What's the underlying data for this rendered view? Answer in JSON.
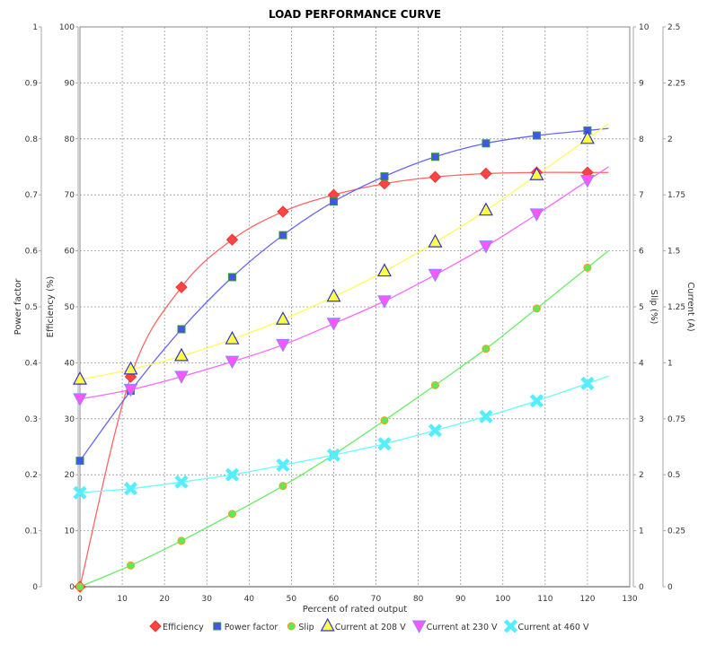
{
  "chart_data": {
    "type": "scatter",
    "title": "LOAD PERFORMANCE CURVE",
    "xlabel": "Percent of rated output",
    "xlim": [
      0,
      130
    ],
    "xticks": [
      0,
      10,
      20,
      30,
      40,
      50,
      60,
      70,
      80,
      90,
      100,
      110,
      120,
      130
    ],
    "grid": true,
    "legend_position": "bottom",
    "fit_to_x": 125,
    "axes": {
      "power_factor": {
        "label": "Power factor",
        "side": "left-outer",
        "ylim": [
          0,
          1
        ],
        "ticks": [
          "0",
          "0.1",
          "0.2",
          "0.3",
          "0.4",
          "0.5",
          "0.6",
          "0.7",
          "0.8",
          "0.9",
          "1"
        ]
      },
      "efficiency": {
        "label": "Efficiency (%)",
        "side": "left",
        "ylim": [
          0,
          100
        ],
        "ticks": [
          "0",
          "10",
          "20",
          "30",
          "40",
          "50",
          "60",
          "70",
          "80",
          "90",
          "100"
        ]
      },
      "slip": {
        "label": "Slip (%)",
        "side": "right",
        "ylim": [
          0,
          10
        ],
        "ticks": [
          "0",
          "1",
          "2",
          "3",
          "4",
          "5",
          "6",
          "7",
          "8",
          "9",
          "10"
        ]
      },
      "current": {
        "label": "Current (A)",
        "side": "right-outer",
        "ylim": [
          0,
          2.5
        ],
        "ticks": [
          "0",
          "0.25",
          "0.5",
          "0.75",
          "1",
          "1.25",
          "1.5",
          "1.75",
          "2",
          "2.25",
          "2.5"
        ]
      }
    },
    "x": [
      0,
      12,
      24,
      36,
      48,
      60,
      72,
      84,
      96,
      108,
      120
    ],
    "series": [
      {
        "name": "Efficiency",
        "axis": "efficiency",
        "color": "#ff4444",
        "line_color": "#ff6666",
        "marker": "diamond",
        "values": [
          0,
          37.5,
          53.5,
          62,
          67,
          70,
          72,
          73.2,
          73.8,
          74,
          74
        ]
      },
      {
        "name": "Power factor",
        "axis": "power_factor",
        "color": "#4455ee",
        "line_color": "#6666ff",
        "marker": "square",
        "values": [
          0.225,
          0.35,
          0.46,
          0.553,
          0.628,
          0.688,
          0.733,
          0.768,
          0.792,
          0.806,
          0.815
        ]
      },
      {
        "name": "Slip",
        "axis": "slip",
        "color": "#55ee55",
        "line_color": "#66ee66",
        "marker": "circle",
        "values": [
          0,
          0.38,
          0.82,
          1.3,
          1.8,
          2.36,
          2.97,
          3.6,
          4.25,
          4.97,
          5.7
        ]
      },
      {
        "name": "Current at 208 V",
        "axis": "current",
        "color": "#ffff44",
        "line_color": "#ffff55",
        "marker": "triangle-up",
        "values": [
          0.925,
          0.97,
          1.03,
          1.105,
          1.193,
          1.295,
          1.408,
          1.538,
          1.68,
          1.838,
          2.0
        ]
      },
      {
        "name": "Current at 230 V",
        "axis": "current",
        "color": "#ff55ff",
        "line_color": "#ff66ff",
        "marker": "triangle-down",
        "values": [
          0.838,
          0.88,
          0.938,
          1.005,
          1.08,
          1.175,
          1.275,
          1.393,
          1.52,
          1.663,
          1.813
        ]
      },
      {
        "name": "Current at 460 V",
        "axis": "current",
        "color": "#55eeff",
        "line_color": "#66ffff",
        "marker": "x",
        "values": [
          0.42,
          0.438,
          0.468,
          0.5,
          0.543,
          0.588,
          0.638,
          0.698,
          0.76,
          0.83,
          0.908
        ]
      }
    ]
  }
}
